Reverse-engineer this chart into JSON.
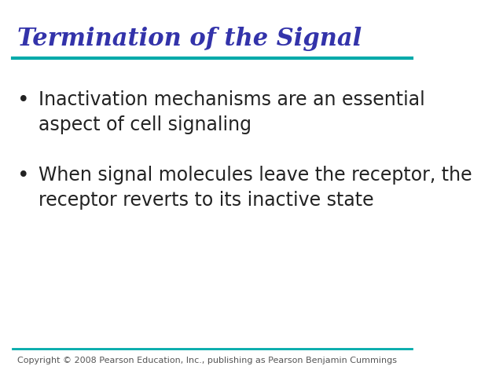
{
  "title": "Termination of the Signal",
  "title_color": "#3333AA",
  "title_fontstyle": "italic",
  "title_fontsize": 22,
  "title_fontweight": "bold",
  "line_color": "#00AAAA",
  "background_color": "#FFFFFF",
  "bullet_points": [
    "Inactivation mechanisms are an essential\naspect of cell signaling",
    "When signal molecules leave the receptor, the\nreceptor reverts to its inactive state"
  ],
  "bullet_color": "#222222",
  "bullet_fontsize": 17,
  "copyright_text": "Copyright © 2008 Pearson Education, Inc., publishing as Pearson Benjamin Cummings",
  "copyright_fontsize": 8,
  "copyright_color": "#555555"
}
